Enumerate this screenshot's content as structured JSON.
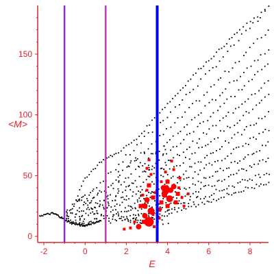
{
  "chart_data": {
    "type": "scatter",
    "title": "",
    "xlabel": "E",
    "ylabel": "<M>",
    "xlim": [
      -2.3,
      8.9
    ],
    "ylim": [
      -5,
      190
    ],
    "xticks": [
      "-2",
      "0",
      "2",
      "4",
      "6",
      "8"
    ],
    "yticks": [
      "0",
      "50",
      "100",
      "150"
    ],
    "grid": false,
    "vertical_lines": [
      {
        "x": -1.0,
        "color": "#8a2be2"
      },
      {
        "x": 1.0,
        "color": "#cc33cc"
      },
      {
        "x": 3.5,
        "color": "#0000ff"
      }
    ],
    "series": [
      {
        "color": "#000000",
        "bands": [
          {
            "x0": -0.9,
            "y0": 20,
            "x1": 8.9,
            "y1": 188
          },
          {
            "x0": -0.6,
            "y0": 18,
            "x1": 8.9,
            "y1": 170
          },
          {
            "x0": -0.3,
            "y0": 16,
            "x1": 8.9,
            "y1": 155
          },
          {
            "x0": 0.0,
            "y0": 15,
            "x1": 8.9,
            "y1": 142
          },
          {
            "x0": 0.3,
            "y0": 14,
            "x1": 8.9,
            "y1": 128
          },
          {
            "x0": 0.6,
            "y0": 14,
            "x1": 8.9,
            "y1": 115
          },
          {
            "x0": 0.9,
            "y0": 13,
            "x1": 8.9,
            "y1": 101
          },
          {
            "x0": 1.2,
            "y0": 13,
            "x1": 8.9,
            "y1": 88
          },
          {
            "x0": 1.5,
            "y0": 12,
            "x1": 8.9,
            "y1": 76
          },
          {
            "x0": 1.8,
            "y0": 12,
            "x1": 8.9,
            "y1": 64
          },
          {
            "x0": 2.1,
            "y0": 12,
            "x1": 8.9,
            "y1": 53
          },
          {
            "x0": 2.4,
            "y0": 11,
            "x1": 8.9,
            "y1": 45
          }
        ],
        "upper_envelope": [
          [
            -0.7,
            20
          ],
          [
            0.0,
            48
          ],
          [
            0.8,
            62
          ],
          [
            1.5,
            68
          ],
          [
            2.5,
            80
          ],
          [
            3.5,
            100
          ],
          [
            4.5,
            118
          ],
          [
            5.5,
            137
          ],
          [
            6.5,
            153
          ],
          [
            7.5,
            170
          ],
          [
            8.9,
            188
          ]
        ],
        "curve": [
          [
            -2.2,
            17
          ],
          [
            -1.9,
            18
          ],
          [
            -1.6,
            19
          ],
          [
            -1.4,
            18
          ],
          [
            -1.2,
            16
          ],
          [
            -1.0,
            14
          ],
          [
            -0.8,
            12
          ],
          [
            -0.6,
            11
          ],
          [
            -0.4,
            10
          ],
          [
            -0.2,
            9
          ],
          [
            0.0,
            9
          ],
          [
            0.2,
            10
          ],
          [
            0.4,
            11
          ],
          [
            0.6,
            12
          ],
          [
            0.8,
            13
          ]
        ]
      },
      {
        "color": "#ff0000",
        "points": [
          [
            2.6,
            8,
            4
          ],
          [
            3.1,
            12,
            7
          ],
          [
            3.2,
            21,
            5
          ],
          [
            2.9,
            25,
            4
          ],
          [
            3.0,
            30,
            4
          ],
          [
            3.3,
            32,
            3
          ],
          [
            3.9,
            37,
            5
          ],
          [
            4.1,
            31,
            5
          ],
          [
            3.8,
            40,
            4
          ],
          [
            4.3,
            41,
            4
          ],
          [
            4.0,
            45,
            3
          ],
          [
            3.7,
            28,
            3
          ],
          [
            3.1,
            42,
            3
          ],
          [
            3.0,
            56,
            2
          ],
          [
            3.2,
            51,
            2
          ],
          [
            3.1,
            63,
            2
          ],
          [
            4.2,
            62,
            2
          ],
          [
            3.9,
            53,
            2
          ],
          [
            4.5,
            35,
            3
          ],
          [
            4.4,
            28,
            3
          ],
          [
            4.6,
            48,
            2
          ],
          [
            3.0,
            38,
            2
          ],
          [
            2.7,
            25,
            3
          ],
          [
            2.9,
            17,
            4
          ],
          [
            2.2,
            7,
            2
          ],
          [
            1.9,
            6,
            2
          ],
          [
            2.4,
            12,
            2
          ],
          [
            3.6,
            22,
            3
          ],
          [
            4.7,
            32,
            2
          ],
          [
            4.8,
            25,
            2
          ],
          [
            5.0,
            35,
            2
          ],
          [
            4.3,
            55,
            2
          ],
          [
            2.8,
            34,
            2
          ],
          [
            3.3,
            18,
            2
          ],
          [
            3.7,
            45,
            2
          ],
          [
            3.95,
            40,
            4
          ],
          [
            3.85,
            34,
            4
          ],
          [
            4.15,
            38,
            4
          ],
          [
            3.35,
            8,
            2
          ],
          [
            3.6,
            15,
            2
          ],
          [
            2.85,
            12,
            3
          ],
          [
            3.4,
            36,
            2
          ],
          [
            4.55,
            40,
            2
          ],
          [
            4.0,
            25,
            3
          ]
        ]
      }
    ]
  }
}
